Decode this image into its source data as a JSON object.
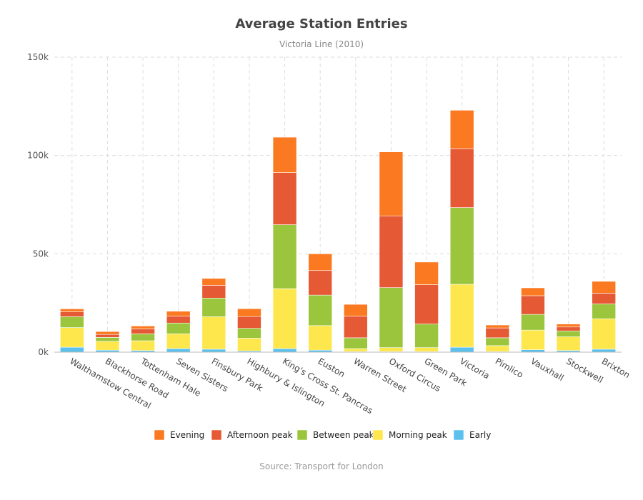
{
  "chart_data": {
    "type": "bar",
    "stacked": true,
    "title": "Average Station Entries",
    "subtitle": "Victoria Line (2010)",
    "source": "Source: Transport for London",
    "ylim": [
      0,
      150000
    ],
    "yticks": [
      0,
      50000,
      100000,
      150000
    ],
    "ytick_labels": [
      "0k",
      "50k",
      "100k",
      "150k"
    ],
    "grid": true,
    "legend_position": "bottom",
    "categories": [
      "Walthamstow Central",
      "Blackhorse Road",
      "Tottenham Hale",
      "Seven Sisters",
      "Finsbury Park",
      "Highbury & Islington",
      "King's Cross St. Pancras",
      "Euston",
      "Warren Street",
      "Oxford Circus",
      "Green Park",
      "Victoria",
      "Pimlico",
      "Vauxhall",
      "Stockwell",
      "Brixton"
    ],
    "series": [
      {
        "name": "Early",
        "color": "#5bc0eb",
        "values": [
          2500,
          1000,
          800,
          1800,
          1500,
          600,
          1800,
          1000,
          300,
          300,
          300,
          2500,
          300,
          1200,
          800,
          1500
        ]
      },
      {
        "name": "Morning peak",
        "color": "#fde74c",
        "values": [
          10000,
          4500,
          5000,
          7500,
          16500,
          6500,
          30500,
          12500,
          1500,
          2000,
          2000,
          32000,
          3000,
          10000,
          7000,
          15500
        ]
      },
      {
        "name": "Between peak",
        "color": "#9bc53d",
        "values": [
          5500,
          2000,
          3500,
          5500,
          9500,
          5000,
          32500,
          15500,
          5500,
          30500,
          12000,
          39000,
          4000,
          8000,
          3000,
          7500
        ]
      },
      {
        "name": "Afternoon peak",
        "color": "#e55934",
        "values": [
          2500,
          1500,
          2500,
          3500,
          6500,
          6000,
          26500,
          12500,
          11000,
          36500,
          20000,
          30000,
          5000,
          9500,
          2000,
          5500
        ]
      },
      {
        "name": "Evening",
        "color": "#fa7921",
        "values": [
          1500,
          1500,
          1500,
          2500,
          3500,
          4000,
          18000,
          8500,
          6000,
          32500,
          11500,
          19500,
          1500,
          4000,
          1500,
          6000
        ]
      }
    ]
  }
}
